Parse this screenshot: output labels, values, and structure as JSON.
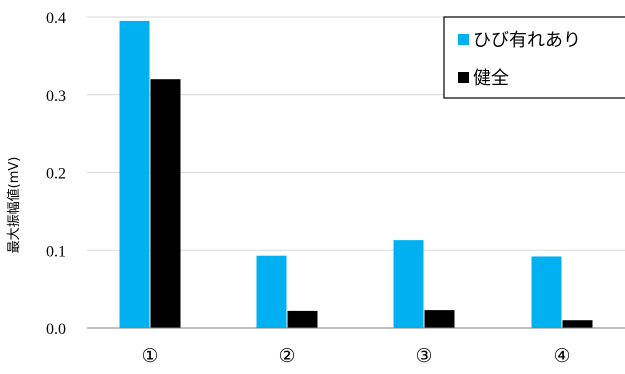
{
  "chart_data": {
    "type": "bar",
    "title": "",
    "xlabel": "",
    "ylabel": "最大振幅値(mV)",
    "categories": [
      "①",
      "②",
      "③",
      "④"
    ],
    "series": [
      {
        "name": "ひび有れあり",
        "color": "#00b0f0",
        "values": [
          0.395,
          0.093,
          0.113,
          0.092
        ]
      },
      {
        "name": "健全",
        "color": "#000000",
        "values": [
          0.32,
          0.022,
          0.023,
          0.01
        ]
      }
    ],
    "ylim": [
      0,
      0.4
    ],
    "yticks": [
      0.0,
      0.1,
      0.2,
      0.3,
      0.4
    ],
    "ytick_labels": [
      "0.0",
      "0.1",
      "0.2",
      "0.3",
      "0.4"
    ],
    "grid": true,
    "grid_color": "#d9d9d9",
    "legend_position": "top-right"
  }
}
